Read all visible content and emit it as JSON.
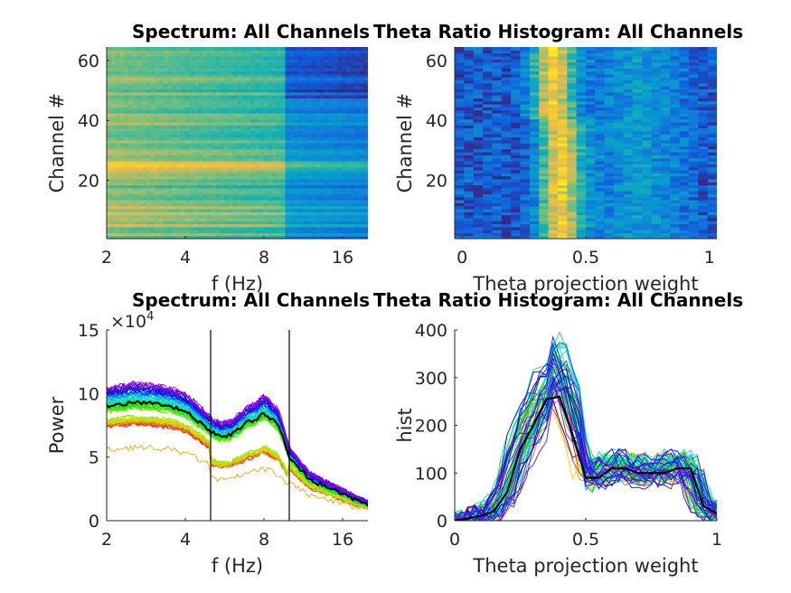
{
  "chart_data": [
    {
      "type": "heatmap",
      "title": "Spectrum: All Channels",
      "xlabel": "f (Hz)",
      "ylabel": "Channel #",
      "xscale": "log2",
      "xlim": [
        2,
        20
      ],
      "ylim": [
        0.5,
        64.5
      ],
      "xticks": [
        2,
        4,
        8,
        16
      ],
      "xtick_labels": [
        "2",
        "4",
        "8",
        "16"
      ],
      "yticks": [
        20,
        40,
        60
      ],
      "ytick_labels": [
        "20",
        "40",
        "60"
      ],
      "colormap": "parula"
    },
    {
      "type": "heatmap",
      "title": "Theta Ratio Histogram: All Channels",
      "xlabel": "Theta projection weight",
      "ylabel": "Channel #",
      "xlim": [
        -0.03,
        1.03
      ],
      "ylim": [
        0.5,
        64.5
      ],
      "xticks": [
        0,
        0.5,
        1
      ],
      "xtick_labels": [
        "0",
        "0.5",
        "1"
      ],
      "yticks": [
        20,
        40,
        60
      ],
      "ytick_labels": [
        "20",
        "40",
        "60"
      ],
      "colormap": "parula",
      "peak_x": 0.4
    },
    {
      "type": "line",
      "title": "Spectrum: All Channels",
      "xlabel": "f (Hz)",
      "ylabel": "Power",
      "y_exponent": "×10⁴",
      "exponent_base": "×10",
      "exponent_power": "4",
      "xscale": "log2",
      "xlim": [
        2,
        20
      ],
      "ylim": [
        0,
        15
      ],
      "xticks": [
        2,
        4,
        8,
        16
      ],
      "xtick_labels": [
        "2",
        "4",
        "8",
        "16"
      ],
      "yticks": [
        0,
        5,
        10,
        15
      ],
      "ytick_labels": [
        "0",
        "5",
        "10",
        "15"
      ],
      "vlines": [
        5,
        10
      ],
      "mean_series": {
        "name": "mean",
        "color": "#000000",
        "x": [
          2,
          2.5,
          3,
          3.5,
          4,
          4.5,
          5,
          5.5,
          6,
          6.5,
          7,
          7.5,
          8,
          8.5,
          9,
          9.5,
          10,
          11,
          12,
          14,
          16,
          18,
          20
        ],
        "y": [
          9,
          9.3,
          9.2,
          9,
          8.6,
          7.8,
          7.0,
          6.6,
          6.8,
          7.3,
          7.8,
          8.0,
          8.5,
          8.0,
          7.6,
          6.5,
          5.0,
          4.0,
          3.2,
          2.6,
          2.1,
          1.6,
          1.3
        ]
      },
      "n_channels": 64,
      "channel_colormap": "hsv (red→yellow→green→cyan→blue→purple)"
    },
    {
      "type": "line",
      "title": "Theta Ratio Histogram: All Channels",
      "xlabel": "Theta projection weight",
      "ylabel": "hist",
      "xlim": [
        0,
        1
      ],
      "ylim": [
        0,
        400
      ],
      "xticks": [
        0,
        0.5,
        1
      ],
      "xtick_labels": [
        "0",
        "0.5",
        "1"
      ],
      "yticks": [
        0,
        100,
        200,
        300,
        400
      ],
      "ytick_labels": [
        "0",
        "100",
        "200",
        "300",
        "400"
      ],
      "mean_series": {
        "name": "mean",
        "color": "#000000",
        "x": [
          0,
          0.05,
          0.1,
          0.15,
          0.2,
          0.25,
          0.3,
          0.35,
          0.4,
          0.45,
          0.5,
          0.55,
          0.6,
          0.65,
          0.7,
          0.75,
          0.8,
          0.85,
          0.9,
          0.95,
          1
        ],
        "y": [
          0,
          5,
          10,
          20,
          60,
          150,
          200,
          255,
          260,
          180,
          90,
          90,
          110,
          110,
          100,
          100,
          100,
          110,
          110,
          30,
          15
        ]
      },
      "n_channels": 64
    }
  ]
}
